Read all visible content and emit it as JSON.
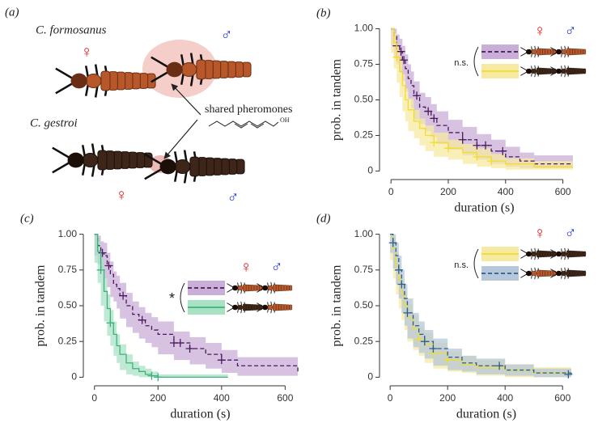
{
  "diagram": {
    "label": "(a)",
    "species": [
      "C. formosanus",
      "C. gestroi"
    ],
    "annotation": "shared pheromones",
    "chem_label": "OH",
    "symbols": [
      "♀",
      "♂",
      "♀",
      "♂"
    ]
  },
  "chart_data": [
    {
      "type": "line",
      "panel": "(b)",
      "xlabel": "duration (s)",
      "ylabel": "prob. in tandem",
      "xlim": [
        -40,
        635
      ],
      "ylim": [
        -0.06,
        1.06
      ],
      "xticks": [
        0,
        200,
        400,
        600
      ],
      "yticks": [
        0,
        0.25,
        {
          "value": 0.5,
          "label": "0.50"
        },
        0.75,
        {
          "value": 1,
          "label": "1.00"
        }
      ],
      "significance": "n.s.",
      "female_symbol": "♀",
      "male_symbol": "♂",
      "series": [
        {
          "color": "#4b1a5e",
          "band_color": "#c9aed8",
          "dashed": true,
          "x": [
            0,
            10,
            20,
            30,
            40,
            50,
            60,
            70,
            80,
            100,
            120,
            140,
            160,
            200,
            250,
            300,
            350,
            400,
            450,
            500,
            635
          ],
          "values": [
            1,
            0.95,
            0.88,
            0.84,
            0.78,
            0.72,
            0.65,
            0.6,
            0.53,
            0.45,
            0.42,
            0.37,
            0.32,
            0.27,
            0.22,
            0.18,
            0.14,
            0.1,
            0.07,
            0.05,
            0.05
          ],
          "lower": [
            1,
            0.88,
            0.8,
            0.75,
            0.69,
            0.63,
            0.56,
            0.5,
            0.44,
            0.36,
            0.33,
            0.28,
            0.24,
            0.19,
            0.15,
            0.11,
            0.08,
            0.05,
            0.03,
            0.02,
            0.02
          ],
          "upper": [
            1,
            1,
            0.96,
            0.93,
            0.88,
            0.82,
            0.75,
            0.7,
            0.63,
            0.55,
            0.52,
            0.47,
            0.42,
            0.36,
            0.31,
            0.26,
            0.22,
            0.17,
            0.13,
            0.11,
            0.11
          ],
          "censored": {
            "x": [
              20,
              35,
              45,
              90,
              130,
              150,
              250,
              300,
              330,
              390
            ],
            "y": [
              0.88,
              0.84,
              0.78,
              0.53,
              0.42,
              0.37,
              0.22,
              0.18,
              0.18,
              0.14
            ]
          }
        },
        {
          "color": "#f2dc2c",
          "band_color": "#f6eaa2",
          "dashed": false,
          "x": [
            0,
            10,
            20,
            30,
            40,
            50,
            60,
            80,
            100,
            120,
            150,
            200,
            250,
            300,
            350,
            400,
            500,
            635
          ],
          "values": [
            1,
            0.9,
            0.8,
            0.7,
            0.6,
            0.5,
            0.43,
            0.35,
            0.3,
            0.25,
            0.2,
            0.16,
            0.13,
            0.1,
            0.07,
            0.05,
            0.03,
            0.03
          ],
          "lower": [
            1,
            0.83,
            0.72,
            0.62,
            0.52,
            0.42,
            0.35,
            0.28,
            0.23,
            0.18,
            0.14,
            0.1,
            0.08,
            0.05,
            0.03,
            0.02,
            0.01,
            0.01
          ],
          "upper": [
            1,
            0.97,
            0.88,
            0.78,
            0.68,
            0.58,
            0.51,
            0.43,
            0.37,
            0.32,
            0.27,
            0.22,
            0.19,
            0.16,
            0.12,
            0.09,
            0.07,
            0.07
          ],
          "censored": {
            "x": [
              20,
              150,
              200,
              300,
              350
            ],
            "y": [
              0.8,
              0.2,
              0.16,
              0.1,
              0.07
            ]
          }
        }
      ]
    },
    {
      "type": "line",
      "panel": "(c)",
      "xlabel": "duration (s)",
      "ylabel": "prob. in tandem",
      "xlim": [
        -35,
        650
      ],
      "ylim": [
        -0.06,
        1.06
      ],
      "xticks": [
        0,
        200,
        400,
        600
      ],
      "yticks": [
        0,
        0.25,
        {
          "value": 0.5,
          "label": "0.50"
        },
        0.75,
        {
          "value": 1,
          "label": "1.00"
        }
      ],
      "significance": "*",
      "female_symbol": "♀",
      "male_symbol": "♂",
      "series": [
        {
          "color": "#4b1a5e",
          "band_color": "#c9aed8",
          "dashed": true,
          "x": [
            0,
            10,
            20,
            30,
            40,
            50,
            60,
            70,
            80,
            100,
            120,
            140,
            160,
            180,
            200,
            250,
            300,
            350,
            400,
            450,
            640
          ],
          "values": [
            1,
            0.92,
            0.87,
            0.85,
            0.78,
            0.72,
            0.65,
            0.62,
            0.57,
            0.5,
            0.44,
            0.4,
            0.36,
            0.33,
            0.3,
            0.24,
            0.2,
            0.16,
            0.12,
            0.08,
            0.04
          ],
          "lower": [
            1,
            0.85,
            0.79,
            0.76,
            0.69,
            0.63,
            0.56,
            0.53,
            0.48,
            0.41,
            0.35,
            0.31,
            0.27,
            0.24,
            0.21,
            0.16,
            0.12,
            0.09,
            0.06,
            0.03,
            0.01
          ],
          "upper": [
            1,
            0.99,
            0.95,
            0.94,
            0.87,
            0.81,
            0.74,
            0.71,
            0.66,
            0.59,
            0.53,
            0.49,
            0.45,
            0.42,
            0.39,
            0.32,
            0.28,
            0.24,
            0.19,
            0.14,
            0.14
          ],
          "censored": {
            "x": [
              25,
              45,
              90,
              150,
              250,
              270,
              300,
              400
            ],
            "y": [
              0.87,
              0.78,
              0.57,
              0.4,
              0.24,
              0.24,
              0.2,
              0.12
            ]
          }
        },
        {
          "color": "#3cb37a",
          "band_color": "#a9e1c5",
          "dashed": false,
          "x": [
            0,
            10,
            20,
            30,
            40,
            50,
            60,
            70,
            80,
            100,
            120,
            140,
            160,
            180,
            200,
            420
          ],
          "values": [
            1,
            0.88,
            0.75,
            0.6,
            0.48,
            0.38,
            0.3,
            0.22,
            0.16,
            0.1,
            0.06,
            0.04,
            0.02,
            0.01,
            0,
            0
          ],
          "lower": [
            1,
            0.8,
            0.66,
            0.5,
            0.39,
            0.29,
            0.22,
            0.15,
            0.1,
            0.05,
            0.02,
            0.01,
            0,
            0,
            0,
            0
          ],
          "upper": [
            1,
            0.96,
            0.84,
            0.7,
            0.58,
            0.47,
            0.39,
            0.3,
            0.23,
            0.16,
            0.11,
            0.08,
            0.06,
            0.04,
            0.02,
            0.02
          ],
          "censored": {
            "x": [
              20,
              50,
              180,
              200
            ],
            "y": [
              0.75,
              0.38,
              0.01,
              0
            ]
          }
        }
      ]
    },
    {
      "type": "line",
      "panel": "(d)",
      "xlabel": "duration (s)",
      "ylabel": "prob. in tandem",
      "xlim": [
        -37,
        650
      ],
      "ylim": [
        -0.06,
        1.06
      ],
      "xticks": [
        0,
        200,
        400,
        600
      ],
      "yticks": [
        0,
        0.25,
        {
          "value": 0.5,
          "label": "0.50"
        },
        0.75,
        {
          "value": 1,
          "label": "1.00"
        }
      ],
      "significance": "n.s.",
      "female_symbol": "♀",
      "male_symbol": "♂",
      "series": [
        {
          "color": "#f2dc2c",
          "band_color": "#f6eaa2",
          "dashed": false,
          "x": [
            0,
            10,
            20,
            30,
            40,
            50,
            60,
            80,
            100,
            120,
            150,
            200,
            250,
            300,
            400,
            500,
            630
          ],
          "values": [
            1,
            0.9,
            0.78,
            0.68,
            0.58,
            0.5,
            0.42,
            0.34,
            0.27,
            0.23,
            0.17,
            0.12,
            0.09,
            0.07,
            0.05,
            0.03,
            0.02
          ],
          "lower": [
            1,
            0.82,
            0.69,
            0.58,
            0.48,
            0.4,
            0.33,
            0.25,
            0.19,
            0.15,
            0.1,
            0.06,
            0.04,
            0.03,
            0.01,
            0,
            0
          ],
          "upper": [
            1,
            0.98,
            0.87,
            0.78,
            0.68,
            0.6,
            0.51,
            0.43,
            0.35,
            0.31,
            0.24,
            0.18,
            0.15,
            0.12,
            0.09,
            0.07,
            0.06
          ],
          "censored": {
            "x": [
              100,
              150,
              200
            ],
            "y": [
              0.27,
              0.17,
              0.12
            ]
          }
        },
        {
          "color": "#2c5e8c",
          "band_color": "#b5c7d8",
          "dashed": true,
          "x": [
            0,
            10,
            20,
            30,
            40,
            50,
            60,
            80,
            100,
            120,
            150,
            200,
            250,
            300,
            400,
            500,
            630
          ],
          "values": [
            1,
            0.94,
            0.85,
            0.75,
            0.65,
            0.55,
            0.45,
            0.36,
            0.3,
            0.25,
            0.2,
            0.14,
            0.1,
            0.08,
            0.05,
            0.03,
            0.02
          ],
          "lower": [
            1,
            0.87,
            0.76,
            0.65,
            0.55,
            0.45,
            0.36,
            0.27,
            0.21,
            0.17,
            0.13,
            0.08,
            0.05,
            0.04,
            0.02,
            0.01,
            0
          ],
          "upper": [
            1,
            1,
            0.94,
            0.85,
            0.75,
            0.65,
            0.55,
            0.45,
            0.39,
            0.33,
            0.27,
            0.2,
            0.15,
            0.13,
            0.09,
            0.06,
            0.05
          ],
          "censored": {
            "x": [
              10,
              30,
              40,
              60,
              120,
              150,
              380,
              620
            ],
            "y": [
              0.94,
              0.75,
              0.65,
              0.45,
              0.25,
              0.2,
              0.08,
              0.02
            ]
          }
        }
      ]
    }
  ]
}
